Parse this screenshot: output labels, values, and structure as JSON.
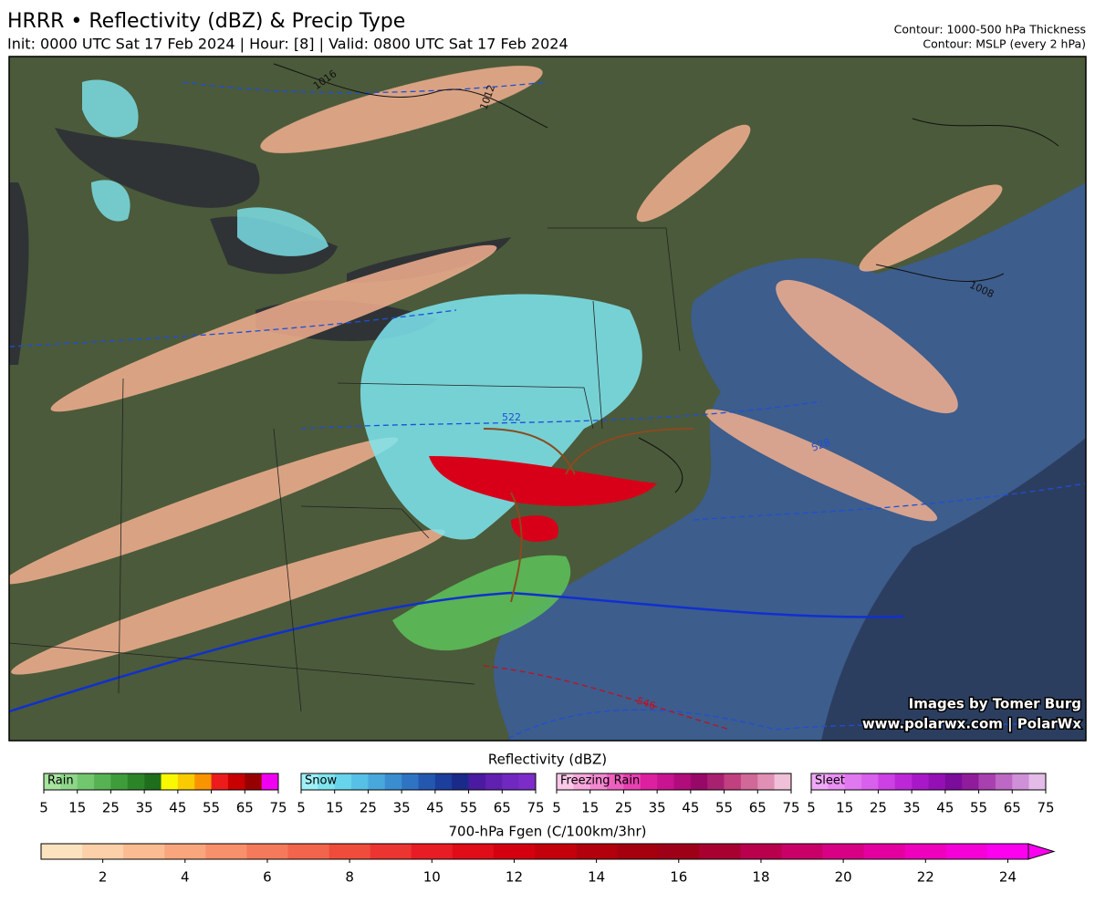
{
  "header": {
    "title": "HRRR • Reflectivity (dBZ) & Precip Type",
    "subtitle": "Init: 0000 UTC Sat 17 Feb 2024 | Hour: [8] | Valid: 0800 UTC Sat 17 Feb 2024",
    "contours": [
      "Contour: 1000-500 hPa Thickness",
      "Contour: MSLP (every 2 hPa)"
    ]
  },
  "map": {
    "contour_labels": [
      "1016",
      "1012",
      "1008",
      "522",
      "528",
      "546"
    ],
    "credits": [
      "Images by Tomer Burg",
      "www.polarwx.com | PolarWx"
    ]
  },
  "reflectivity": {
    "title": "Reflectivity (dBZ)",
    "range": [
      5,
      75
    ],
    "ticks": [
      5,
      15,
      25,
      35,
      45,
      55,
      65,
      75
    ],
    "bars": [
      {
        "name": "Rain",
        "colors": [
          "#a8e4a0",
          "#8ed68a",
          "#72c66e",
          "#56b252",
          "#3e9c3a",
          "#2c8428",
          "#1e6e1c",
          "#f8f800",
          "#f8cc00",
          "#f89400",
          "#ec1c1c",
          "#c80000",
          "#980000",
          "#f000f0"
        ]
      },
      {
        "name": "Snow",
        "colors": [
          "#a0f0f8",
          "#80e4f0",
          "#68d4ec",
          "#56c0e6",
          "#48a8dc",
          "#3a8ed0",
          "#2e74c2",
          "#2458b0",
          "#1c3e9c",
          "#1a2a88",
          "#4a1aa0",
          "#6020b0",
          "#7028c0",
          "#7c2cc8"
        ]
      },
      {
        "name": "Freezing Rain",
        "colors": [
          "#fcc8e8",
          "#f8a8dc",
          "#f488d0",
          "#ee60c0",
          "#e840b0",
          "#dc20a0",
          "#c81490",
          "#b00c7c",
          "#980868",
          "#a82070",
          "#c04080",
          "#d06898",
          "#e090b4",
          "#f0c0d8"
        ]
      },
      {
        "name": "Sleet",
        "colors": [
          "#f0a8f8",
          "#e890f4",
          "#e078f0",
          "#d860ec",
          "#cc40e4",
          "#bc28d8",
          "#a818c8",
          "#9410b4",
          "#7c0c9c",
          "#901c9c",
          "#a840b0",
          "#bc68c4",
          "#d090d8",
          "#e4bce8"
        ]
      }
    ]
  },
  "fgen": {
    "title": "700-hPa Fgen (C/100km/3hr)",
    "range": [
      0.5,
      24.5
    ],
    "ticks": [
      2,
      4,
      6,
      8,
      10,
      12,
      14,
      16,
      18,
      20,
      22,
      24
    ],
    "colors": [
      "#fde2c0",
      "#fcd0a8",
      "#fbbc92",
      "#f9a67e",
      "#f8906c",
      "#f57a5c",
      "#f2644c",
      "#ef4c3c",
      "#ec3430",
      "#e81c24",
      "#e00c18",
      "#d40010",
      "#c4000c",
      "#b2000c",
      "#a4000e",
      "#9e0018",
      "#a80030",
      "#b8004c",
      "#c80068",
      "#d80084",
      "#e400a0",
      "#ee00bc",
      "#f600d8",
      "#fc00f0"
    ]
  }
}
